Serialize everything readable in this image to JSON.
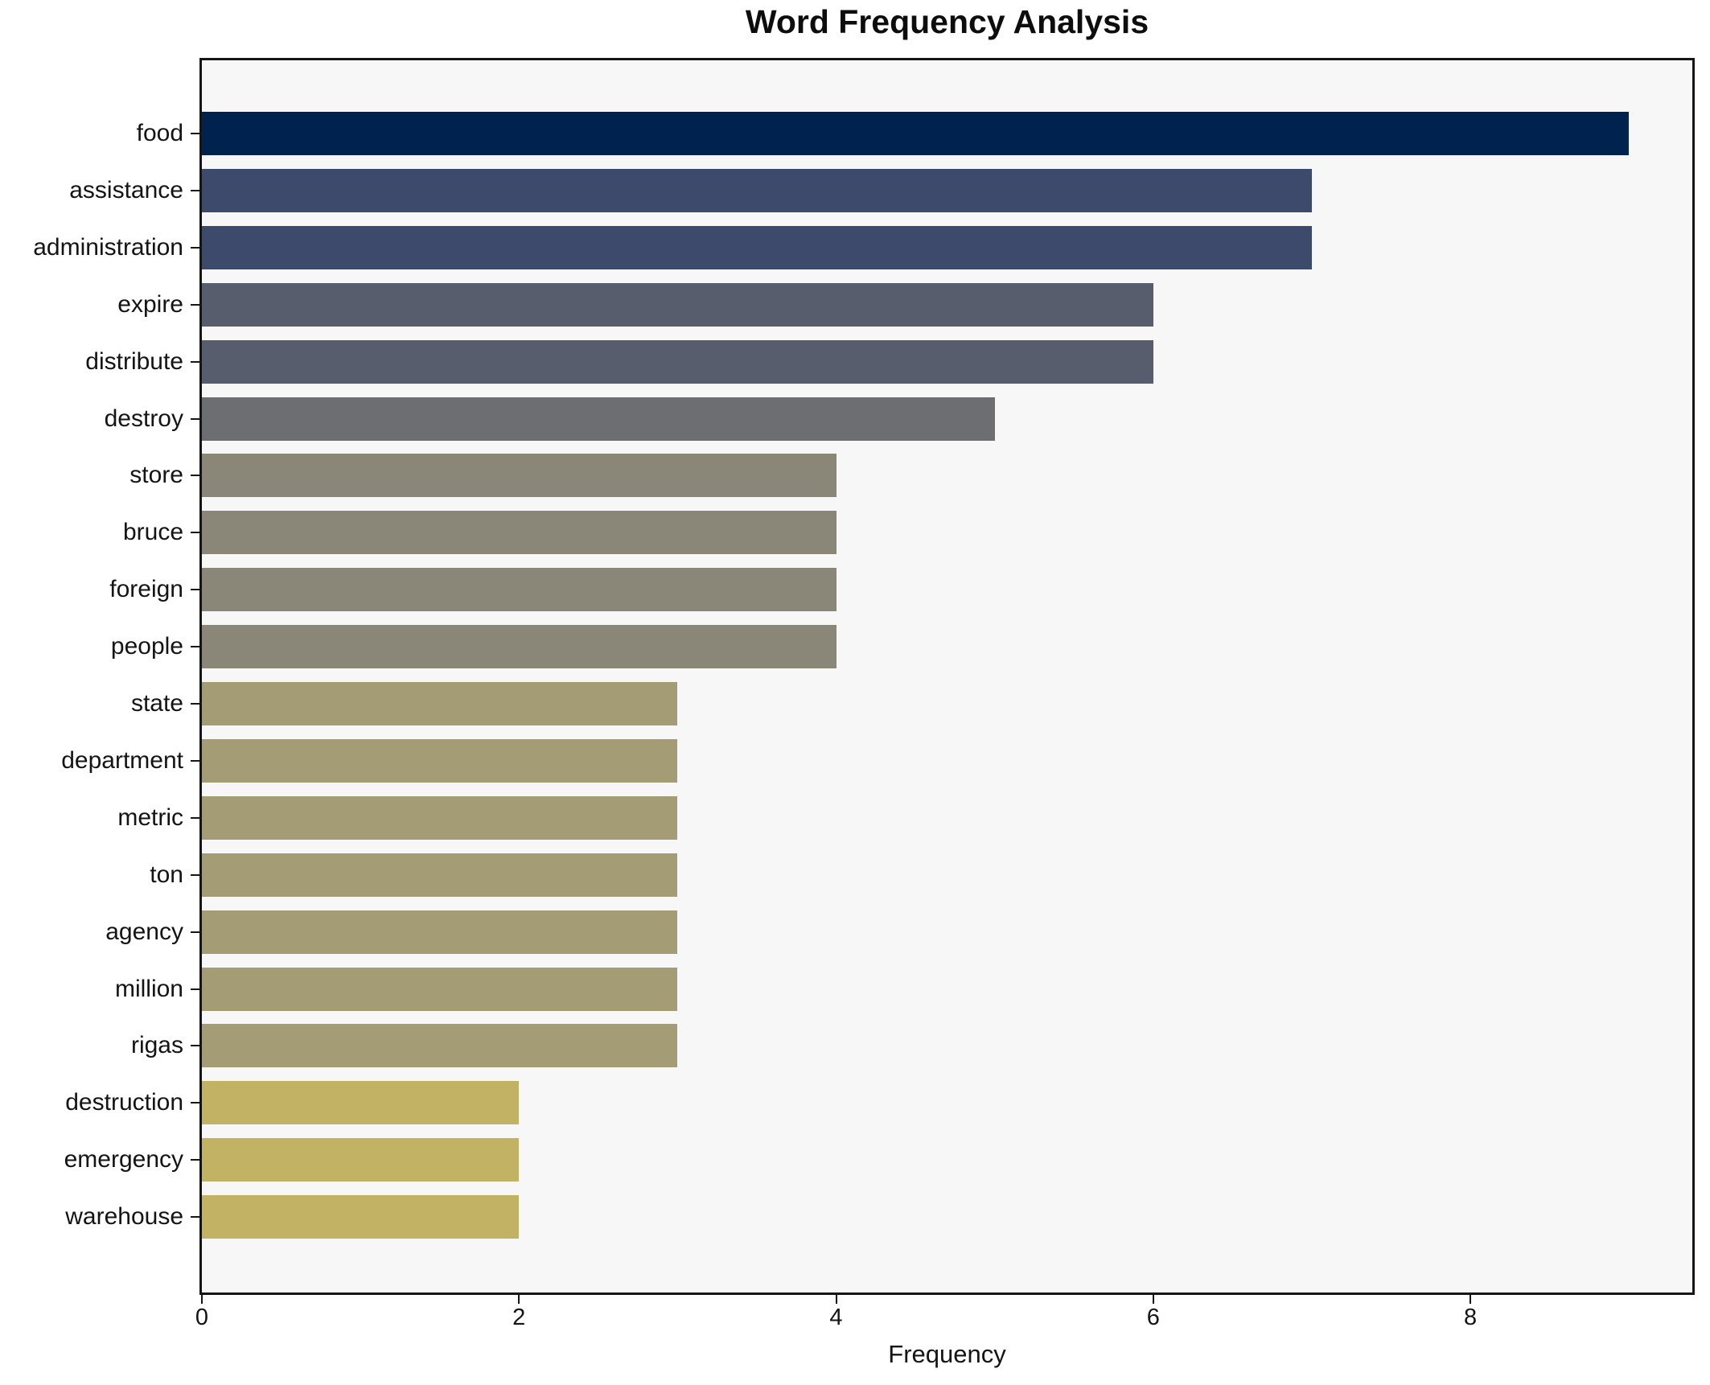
{
  "chart_data": {
    "type": "bar",
    "orientation": "horizontal",
    "title": "Word Frequency Analysis",
    "xlabel": "Frequency",
    "ylabel": "",
    "categories": [
      "food",
      "assistance",
      "administration",
      "expire",
      "distribute",
      "destroy",
      "store",
      "bruce",
      "foreign",
      "people",
      "state",
      "department",
      "metric",
      "ton",
      "agency",
      "million",
      "rigas",
      "destruction",
      "emergency",
      "warehouse"
    ],
    "values": [
      9,
      7,
      7,
      6,
      6,
      5,
      4,
      4,
      4,
      4,
      3,
      3,
      3,
      3,
      3,
      3,
      3,
      2,
      2,
      2
    ],
    "bar_colors": [
      "#00224e",
      "#3e4a6c",
      "#3e4a6c",
      "#575d6d",
      "#575d6d",
      "#6d6e71",
      "#8a8779",
      "#8a8779",
      "#8a8779",
      "#8a8779",
      "#a49c74",
      "#a49c74",
      "#a49c74",
      "#a49c74",
      "#a49c74",
      "#a49c74",
      "#a49c74",
      "#c2b364",
      "#c2b364",
      "#c2b364"
    ],
    "xlim": [
      0,
      9.4
    ],
    "xticks": [
      0,
      2,
      4,
      6,
      8
    ],
    "grid": false,
    "legend": false,
    "plot_background": "#f7f7f8",
    "figure_background": "#ffffff",
    "axis_color": "#161616",
    "text_color": "#141414"
  }
}
